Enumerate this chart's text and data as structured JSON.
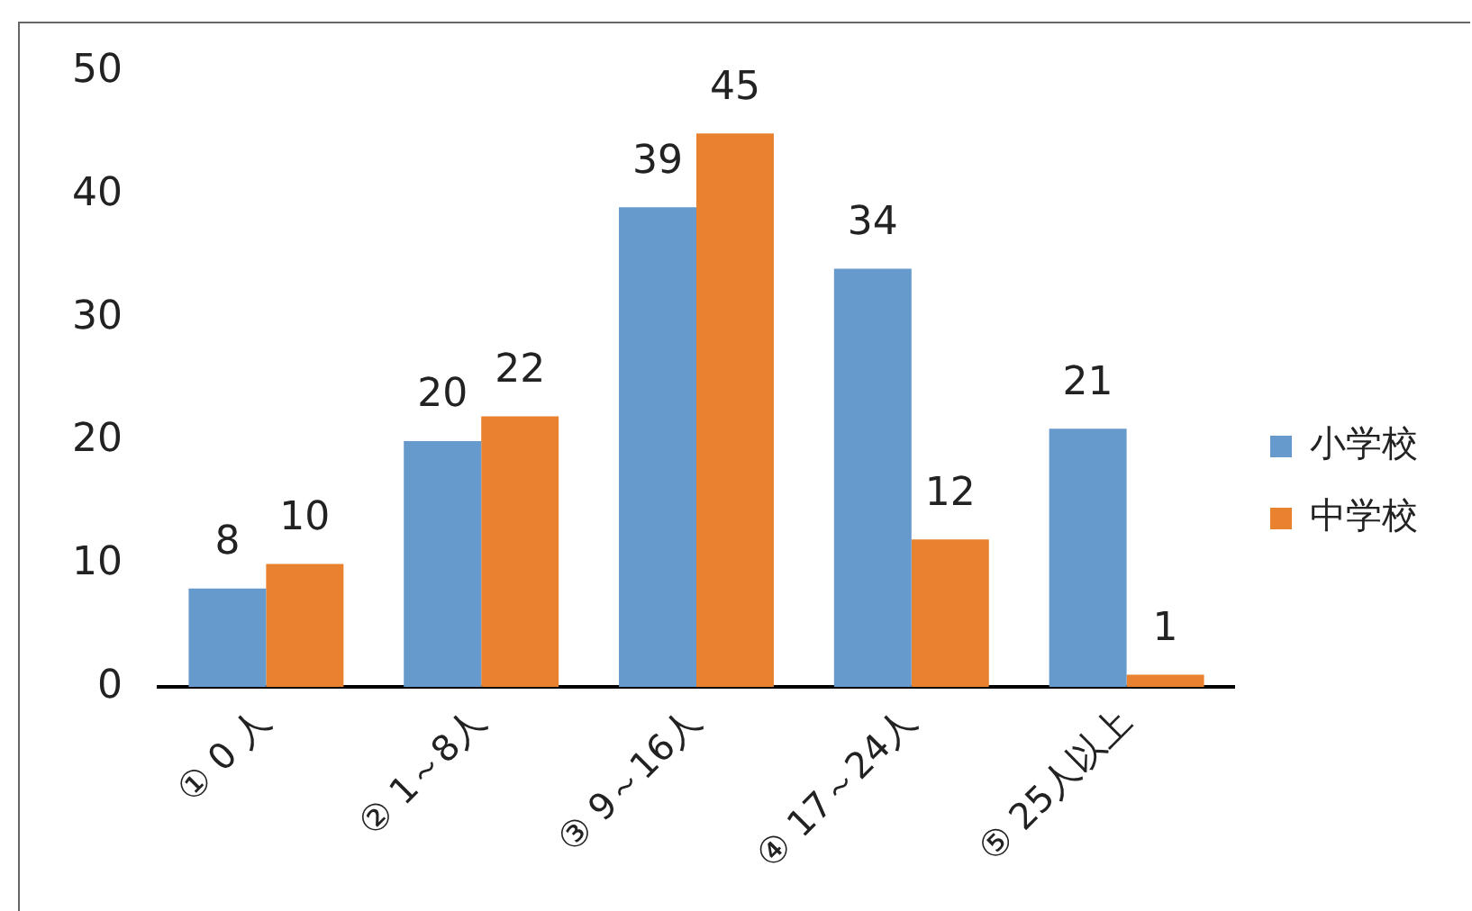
{
  "chart_data": {
    "type": "bar",
    "categories": [
      "① 0 人",
      "② 1～8人",
      "③ 9～16人",
      "④ 17～24人",
      "⑤ 25人以上"
    ],
    "series": [
      {
        "name": "小学校",
        "color": "#6699cc",
        "values": [
          8,
          20,
          39,
          34,
          21
        ]
      },
      {
        "name": "中学校",
        "color": "#e8822f",
        "values": [
          10,
          22,
          45,
          12,
          1
        ]
      }
    ],
    "ylim": [
      0,
      50
    ],
    "yticks": [
      0,
      10,
      20,
      30,
      40,
      50
    ],
    "grid": false,
    "legend": "right",
    "data_labels": true
  }
}
